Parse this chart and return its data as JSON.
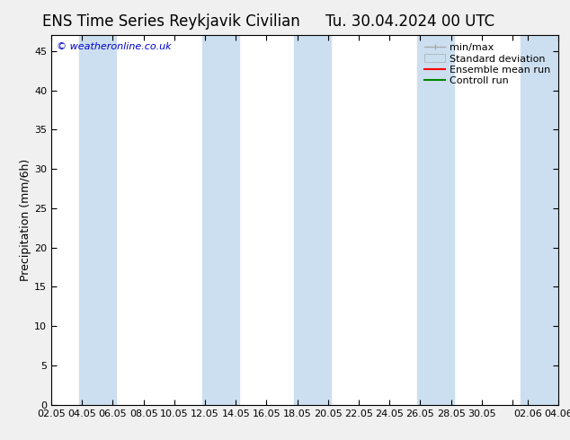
{
  "title_left": "ENS Time Series Reykjavik Civilian",
  "title_right": "Tu. 30.04.2024 00 UTC",
  "ylabel": "Precipitation (mm/6h)",
  "watermark": "© weatheronline.co.uk",
  "ylim": [
    0,
    47
  ],
  "yticks": [
    0,
    5,
    10,
    15,
    20,
    25,
    30,
    35,
    40,
    45
  ],
  "xtick_labels": [
    "02.05",
    "04.05",
    "06.05",
    "08.05",
    "10.05",
    "12.05",
    "14.05",
    "16.05",
    "18.05",
    "20.05",
    "22.05",
    "24.05",
    "26.05",
    "28.05",
    "30.05",
    "",
    "02.06",
    "04.06"
  ],
  "xtick_positions": [
    2,
    4,
    6,
    8,
    10,
    12,
    14,
    16,
    18,
    20,
    22,
    24,
    26,
    28,
    30,
    32,
    33,
    35
  ],
  "xlim": [
    2,
    35
  ],
  "background_color": "#f0f0f0",
  "plot_bg_color": "#ffffff",
  "band_color": "#ccdff0",
  "legend_labels": [
    "min/max",
    "Standard deviation",
    "Ensemble mean run",
    "Controll run"
  ],
  "legend_line_color": "#aaaaaa",
  "legend_band_color": "#c8dff0",
  "ensemble_color": "#ff0000",
  "control_color": "#008800",
  "title_fontsize": 12,
  "axis_label_fontsize": 9,
  "tick_fontsize": 8,
  "legend_fontsize": 8,
  "bands": [
    [
      3.8,
      6.2
    ],
    [
      11.8,
      14.2
    ],
    [
      17.8,
      20.2
    ],
    [
      25.8,
      28.2
    ],
    [
      32.5,
      35.5
    ]
  ]
}
